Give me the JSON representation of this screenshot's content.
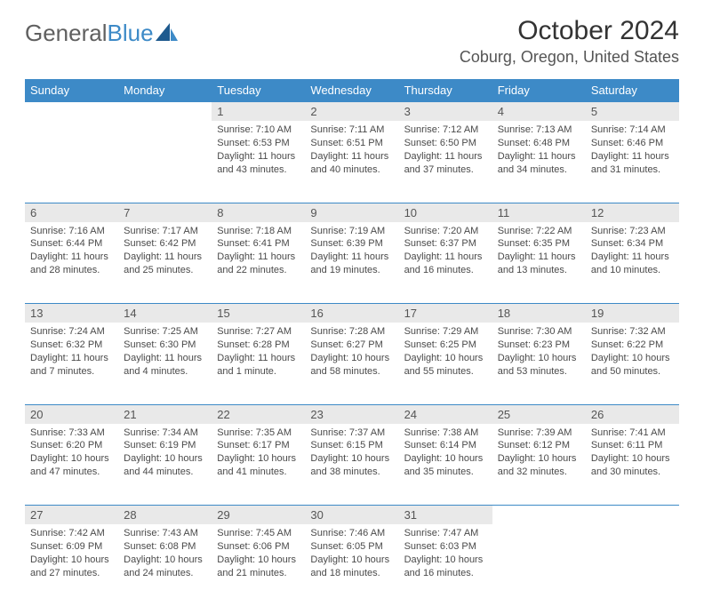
{
  "logo": {
    "word1": "General",
    "word2": "Blue"
  },
  "header": {
    "month_title": "October 2024",
    "location": "Coburg, Oregon, United States"
  },
  "accent_color": "#3d8ac7",
  "grey_bg": "#e9e9e9",
  "day_names": [
    "Sunday",
    "Monday",
    "Tuesday",
    "Wednesday",
    "Thursday",
    "Friday",
    "Saturday"
  ],
  "days": [
    {
      "n": 1,
      "sunrise": "7:10 AM",
      "sunset": "6:53 PM",
      "daylight": "11 hours and 43 minutes."
    },
    {
      "n": 2,
      "sunrise": "7:11 AM",
      "sunset": "6:51 PM",
      "daylight": "11 hours and 40 minutes."
    },
    {
      "n": 3,
      "sunrise": "7:12 AM",
      "sunset": "6:50 PM",
      "daylight": "11 hours and 37 minutes."
    },
    {
      "n": 4,
      "sunrise": "7:13 AM",
      "sunset": "6:48 PM",
      "daylight": "11 hours and 34 minutes."
    },
    {
      "n": 5,
      "sunrise": "7:14 AM",
      "sunset": "6:46 PM",
      "daylight": "11 hours and 31 minutes."
    },
    {
      "n": 6,
      "sunrise": "7:16 AM",
      "sunset": "6:44 PM",
      "daylight": "11 hours and 28 minutes."
    },
    {
      "n": 7,
      "sunrise": "7:17 AM",
      "sunset": "6:42 PM",
      "daylight": "11 hours and 25 minutes."
    },
    {
      "n": 8,
      "sunrise": "7:18 AM",
      "sunset": "6:41 PM",
      "daylight": "11 hours and 22 minutes."
    },
    {
      "n": 9,
      "sunrise": "7:19 AM",
      "sunset": "6:39 PM",
      "daylight": "11 hours and 19 minutes."
    },
    {
      "n": 10,
      "sunrise": "7:20 AM",
      "sunset": "6:37 PM",
      "daylight": "11 hours and 16 minutes."
    },
    {
      "n": 11,
      "sunrise": "7:22 AM",
      "sunset": "6:35 PM",
      "daylight": "11 hours and 13 minutes."
    },
    {
      "n": 12,
      "sunrise": "7:23 AM",
      "sunset": "6:34 PM",
      "daylight": "11 hours and 10 minutes."
    },
    {
      "n": 13,
      "sunrise": "7:24 AM",
      "sunset": "6:32 PM",
      "daylight": "11 hours and 7 minutes."
    },
    {
      "n": 14,
      "sunrise": "7:25 AM",
      "sunset": "6:30 PM",
      "daylight": "11 hours and 4 minutes."
    },
    {
      "n": 15,
      "sunrise": "7:27 AM",
      "sunset": "6:28 PM",
      "daylight": "11 hours and 1 minute."
    },
    {
      "n": 16,
      "sunrise": "7:28 AM",
      "sunset": "6:27 PM",
      "daylight": "10 hours and 58 minutes."
    },
    {
      "n": 17,
      "sunrise": "7:29 AM",
      "sunset": "6:25 PM",
      "daylight": "10 hours and 55 minutes."
    },
    {
      "n": 18,
      "sunrise": "7:30 AM",
      "sunset": "6:23 PM",
      "daylight": "10 hours and 53 minutes."
    },
    {
      "n": 19,
      "sunrise": "7:32 AM",
      "sunset": "6:22 PM",
      "daylight": "10 hours and 50 minutes."
    },
    {
      "n": 20,
      "sunrise": "7:33 AM",
      "sunset": "6:20 PM",
      "daylight": "10 hours and 47 minutes."
    },
    {
      "n": 21,
      "sunrise": "7:34 AM",
      "sunset": "6:19 PM",
      "daylight": "10 hours and 44 minutes."
    },
    {
      "n": 22,
      "sunrise": "7:35 AM",
      "sunset": "6:17 PM",
      "daylight": "10 hours and 41 minutes."
    },
    {
      "n": 23,
      "sunrise": "7:37 AM",
      "sunset": "6:15 PM",
      "daylight": "10 hours and 38 minutes."
    },
    {
      "n": 24,
      "sunrise": "7:38 AM",
      "sunset": "6:14 PM",
      "daylight": "10 hours and 35 minutes."
    },
    {
      "n": 25,
      "sunrise": "7:39 AM",
      "sunset": "6:12 PM",
      "daylight": "10 hours and 32 minutes."
    },
    {
      "n": 26,
      "sunrise": "7:41 AM",
      "sunset": "6:11 PM",
      "daylight": "10 hours and 30 minutes."
    },
    {
      "n": 27,
      "sunrise": "7:42 AM",
      "sunset": "6:09 PM",
      "daylight": "10 hours and 27 minutes."
    },
    {
      "n": 28,
      "sunrise": "7:43 AM",
      "sunset": "6:08 PM",
      "daylight": "10 hours and 24 minutes."
    },
    {
      "n": 29,
      "sunrise": "7:45 AM",
      "sunset": "6:06 PM",
      "daylight": "10 hours and 21 minutes."
    },
    {
      "n": 30,
      "sunrise": "7:46 AM",
      "sunset": "6:05 PM",
      "daylight": "10 hours and 18 minutes."
    },
    {
      "n": 31,
      "sunrise": "7:47 AM",
      "sunset": "6:03 PM",
      "daylight": "10 hours and 16 minutes."
    }
  ],
  "first_day_of_week_index": 2,
  "labels": {
    "sunrise": "Sunrise: ",
    "sunset": "Sunset: ",
    "daylight": "Daylight: "
  }
}
